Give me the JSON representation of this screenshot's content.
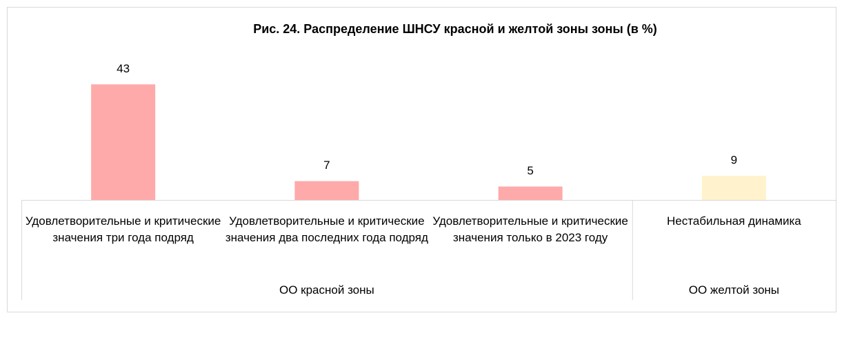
{
  "chart_data": {
    "type": "bar",
    "title": "Рис. 24. Распределение ШНСУ красной и желтой зоны зоны (в %)",
    "groups": [
      {
        "name": "ОО красной зоны",
        "color": "#ffaaaa",
        "categories": [
          "Удовлетворительные и критические значения три года подряд",
          "Удовлетворительные и критические значения два последних года подряд",
          "Удовлетворительные и критические значения только в 2023 году"
        ],
        "values": [
          43,
          7,
          5
        ]
      },
      {
        "name": "ОО желтой зоны",
        "color": "#fff2cc",
        "categories": [
          "Нестабильная динамика"
        ],
        "values": [
          9
        ]
      }
    ]
  }
}
